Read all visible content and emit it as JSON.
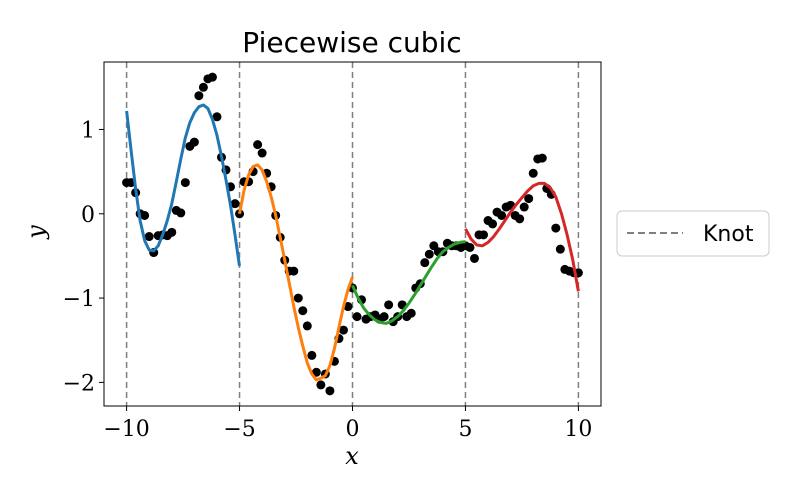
{
  "chart_data": {
    "type": "line",
    "title": "Piecewise cubic",
    "xlabel": "x",
    "ylabel": "y",
    "xlim": [
      -11.0,
      11.0
    ],
    "ylim": [
      -2.28,
      1.8
    ],
    "xticks": [
      -10,
      -5,
      0,
      5,
      10
    ],
    "xtick_labels": [
      "−10",
      "−5",
      "0",
      "5",
      "10"
    ],
    "yticks": [
      -2,
      -1,
      0,
      1
    ],
    "ytick_labels": [
      "−2",
      "−1",
      "0",
      "1"
    ],
    "grid": false,
    "legend": {
      "placement": "outside-right",
      "entries": [
        {
          "label": "Knot",
          "style": "dashed",
          "color": "#7f7f7f"
        }
      ]
    },
    "knots": [
      -10,
      -5,
      0,
      5,
      10
    ],
    "scatter": {
      "name": "",
      "color": "#000000",
      "x": [
        -10.0,
        -9.8,
        -9.6,
        -9.4,
        -9.2,
        -9.0,
        -8.8,
        -8.6,
        -8.4,
        -8.2,
        -8.0,
        -7.8,
        -7.6,
        -7.4,
        -7.2,
        -7.0,
        -6.8,
        -6.6,
        -6.4,
        -6.2,
        -6.0,
        -5.8,
        -5.6,
        -5.4,
        -5.2,
        -5.0,
        -4.8,
        -4.6,
        -4.4,
        -4.2,
        -4.0,
        -3.8,
        -3.6,
        -3.4,
        -3.2,
        -3.0,
        -2.8,
        -2.6,
        -2.4,
        -2.2,
        -2.0,
        -1.8,
        -1.6,
        -1.4,
        -1.2,
        -1.0,
        -0.8,
        -0.6,
        -0.4,
        -0.2,
        0.0,
        0.2,
        0.4,
        0.6,
        0.8,
        1.0,
        1.2,
        1.4,
        1.6,
        1.8,
        2.0,
        2.2,
        2.4,
        2.6,
        2.8,
        3.0,
        3.2,
        3.4,
        3.6,
        3.8,
        4.0,
        4.2,
        4.4,
        4.6,
        4.8,
        5.0,
        5.2,
        5.4,
        5.6,
        5.8,
        6.0,
        6.2,
        6.4,
        6.6,
        6.8,
        7.0,
        7.2,
        7.4,
        7.6,
        7.8,
        8.0,
        8.2,
        8.4,
        8.6,
        8.8,
        9.0,
        9.2,
        9.4,
        9.6,
        9.8,
        10.0
      ],
      "y": [
        0.37,
        0.37,
        0.25,
        0.0,
        -0.02,
        -0.27,
        -0.46,
        -0.26,
        -0.25,
        -0.26,
        -0.22,
        0.04,
        0.01,
        0.37,
        0.8,
        0.85,
        1.4,
        1.5,
        1.6,
        1.62,
        1.15,
        0.67,
        0.52,
        0.32,
        0.12,
        0.0,
        0.38,
        0.38,
        0.5,
        0.82,
        0.72,
        0.48,
        0.32,
        -0.02,
        -0.28,
        -0.55,
        -0.68,
        -0.68,
        -1.0,
        -1.15,
        -1.33,
        -1.68,
        -1.88,
        -2.03,
        -1.9,
        -2.1,
        -1.75,
        -1.48,
        -1.38,
        -1.1,
        -0.88,
        -1.22,
        -1.02,
        -1.25,
        -1.22,
        -1.2,
        -1.25,
        -1.22,
        -1.08,
        -1.28,
        -1.22,
        -1.08,
        -1.22,
        -1.18,
        -0.88,
        -0.83,
        -0.58,
        -0.48,
        -0.38,
        -0.45,
        -0.45,
        -0.35,
        -0.38,
        -0.38,
        -0.4,
        -0.38,
        -0.4,
        -0.53,
        -0.25,
        -0.25,
        -0.08,
        -0.12,
        0.02,
        -0.02,
        0.08,
        0.1,
        -0.02,
        -0.06,
        0.08,
        0.18,
        0.48,
        0.65,
        0.66,
        0.3,
        0.23,
        -0.17,
        -0.42,
        -0.66,
        -0.68,
        -0.7,
        -0.7
      ]
    },
    "series": [
      {
        "color": "#1f77b4",
        "x": [
          -10.0,
          -9.8,
          -9.6,
          -9.4,
          -9.2,
          -9.0,
          -8.8,
          -8.6,
          -8.4,
          -8.2,
          -8.0,
          -7.8,
          -7.6,
          -7.4,
          -7.2,
          -7.0,
          -6.8,
          -6.6,
          -6.4,
          -6.2,
          -6.0,
          -5.8,
          -5.6,
          -5.4,
          -5.2,
          -5.0
        ],
        "y": [
          1.22,
          0.75,
          0.3,
          -0.08,
          -0.32,
          -0.43,
          -0.44,
          -0.38,
          -0.25,
          -0.08,
          0.12,
          0.38,
          0.65,
          0.9,
          1.08,
          1.2,
          1.27,
          1.29,
          1.25,
          1.12,
          0.93,
          0.68,
          0.4,
          0.1,
          -0.25,
          -0.62
        ]
      },
      {
        "color": "#ff7f0e",
        "x": [
          -5.0,
          -4.8,
          -4.6,
          -4.4,
          -4.2,
          -4.0,
          -3.8,
          -3.6,
          -3.4,
          -3.2,
          -3.0,
          -2.8,
          -2.6,
          -2.4,
          -2.2,
          -2.0,
          -1.8,
          -1.6,
          -1.4,
          -1.2,
          -1.0,
          -0.8,
          -0.6,
          -0.4,
          -0.2,
          0.0
        ],
        "y": [
          0.0,
          0.28,
          0.46,
          0.56,
          0.58,
          0.52,
          0.38,
          0.2,
          -0.02,
          -0.28,
          -0.55,
          -0.82,
          -1.1,
          -1.35,
          -1.57,
          -1.77,
          -1.9,
          -1.97,
          -1.95,
          -1.92,
          -1.8,
          -1.6,
          -1.35,
          -1.1,
          -0.9,
          -0.75
        ]
      },
      {
        "color": "#2ca02c",
        "x": [
          0.0,
          0.25,
          0.5,
          0.75,
          1.0,
          1.25,
          1.5,
          1.75,
          2.0,
          2.25,
          2.5,
          2.75,
          3.0,
          3.25,
          3.5,
          3.75,
          4.0,
          4.25,
          4.5,
          4.75,
          5.0
        ],
        "y": [
          -0.85,
          -1.0,
          -1.12,
          -1.2,
          -1.26,
          -1.29,
          -1.3,
          -1.27,
          -1.22,
          -1.15,
          -1.06,
          -0.96,
          -0.85,
          -0.74,
          -0.63,
          -0.53,
          -0.45,
          -0.4,
          -0.36,
          -0.34,
          -0.33
        ]
      },
      {
        "color": "#d62728",
        "x": [
          5.0,
          5.25,
          5.5,
          5.75,
          6.0,
          6.25,
          6.5,
          6.75,
          7.0,
          7.25,
          7.5,
          7.75,
          8.0,
          8.25,
          8.5,
          8.75,
          9.0,
          9.25,
          9.5,
          9.75,
          10.0
        ],
        "y": [
          -0.18,
          -0.3,
          -0.37,
          -0.38,
          -0.34,
          -0.27,
          -0.18,
          -0.08,
          0.02,
          0.11,
          0.19,
          0.27,
          0.33,
          0.36,
          0.36,
          0.31,
          0.2,
          0.0,
          -0.25,
          -0.55,
          -0.92
        ]
      }
    ]
  }
}
